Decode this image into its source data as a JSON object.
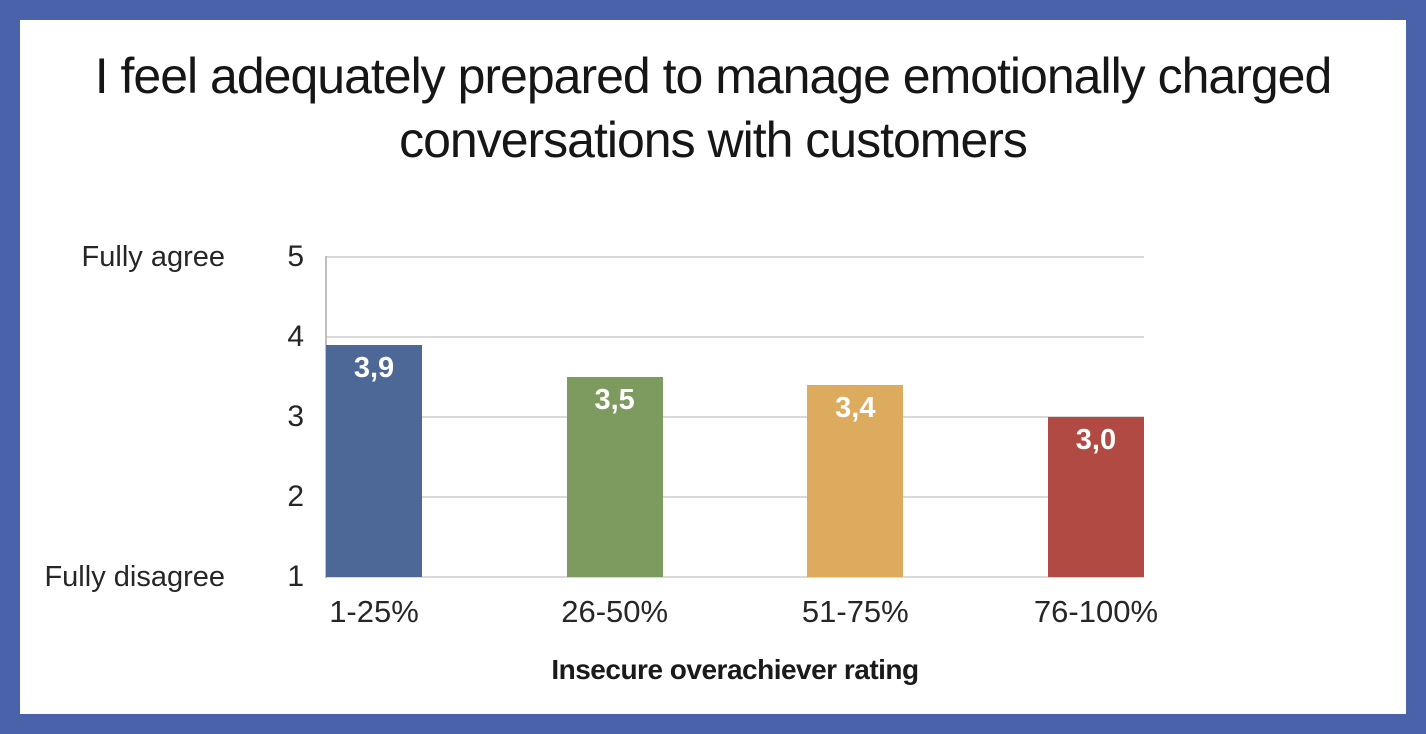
{
  "frame": {
    "border_color": "#4a62aa",
    "background_color": "#ffffff"
  },
  "chart_data": {
    "type": "bar",
    "title": "I feel adequately prepared to manage emotionally charged conversations with customers",
    "title_lines": [
      "I feel adequately prepared to manage emotionally charged",
      "conversations with customers"
    ],
    "categories": [
      "1-25%",
      "26-50%",
      "51-75%",
      "76-100%"
    ],
    "values": [
      3.9,
      3.5,
      3.4,
      3.0
    ],
    "value_labels": [
      "3,9",
      "3,5",
      "3,4",
      "3,0"
    ],
    "bar_colors": [
      "#4d6896",
      "#7d9b5e",
      "#dcab5e",
      "#b04a42"
    ],
    "xlabel": "Insecure overachiever rating",
    "ylabel": "",
    "ylim": [
      1,
      5
    ],
    "yticks": [
      "5",
      "4",
      "3",
      "2",
      "1"
    ],
    "y_annotations": [
      {
        "at_value": 5,
        "label": "Fully agree"
      },
      {
        "at_value": 1,
        "label": "Fully disagree"
      }
    ],
    "grid": true,
    "legend": false,
    "value_label_color": "#ffffff",
    "gridline_color": "#d9d9d9",
    "axis_line_color": "#bfbfbf",
    "text_color": "#262626"
  }
}
